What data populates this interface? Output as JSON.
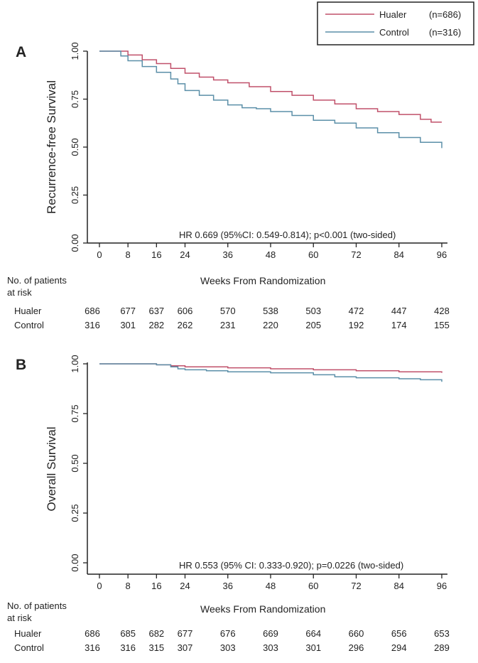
{
  "legend": {
    "entries": [
      {
        "label": "Hualer",
        "n": "(n=686)",
        "color": "#c0506a"
      },
      {
        "label": "Control",
        "n": "(n=316)",
        "color": "#5b8fa8"
      }
    ]
  },
  "chart_data": [
    {
      "type": "line",
      "panel_label": "A",
      "ylabel": "Recurrence-free Survival",
      "xlabel": "Weeks From Randomization",
      "xticks": [
        0,
        8,
        16,
        24,
        36,
        48,
        60,
        72,
        84,
        96
      ],
      "yticks": [
        "0.00",
        "0.25",
        "0.50",
        "0.75",
        "1.00"
      ],
      "xlim": [
        0,
        96
      ],
      "ylim": [
        0,
        1
      ],
      "annotation": "HR 0.669 (95%CI: 0.549-0.814); p<0.001 (two-sided)",
      "series": [
        {
          "name": "Hualer",
          "color": "#c0506a",
          "points": [
            [
              0,
              1.0
            ],
            [
              4,
              1.0
            ],
            [
              8,
              0.98
            ],
            [
              12,
              0.955
            ],
            [
              16,
              0.935
            ],
            [
              20,
              0.91
            ],
            [
              24,
              0.885
            ],
            [
              28,
              0.865
            ],
            [
              32,
              0.85
            ],
            [
              36,
              0.835
            ],
            [
              42,
              0.815
            ],
            [
              48,
              0.79
            ],
            [
              54,
              0.77
            ],
            [
              60,
              0.745
            ],
            [
              66,
              0.725
            ],
            [
              72,
              0.7
            ],
            [
              78,
              0.685
            ],
            [
              84,
              0.67
            ],
            [
              90,
              0.645
            ],
            [
              93,
              0.63
            ],
            [
              96,
              0.63
            ]
          ]
        },
        {
          "name": "Control",
          "color": "#5b8fa8",
          "points": [
            [
              0,
              1.0
            ],
            [
              4,
              1.0
            ],
            [
              6,
              0.975
            ],
            [
              8,
              0.95
            ],
            [
              12,
              0.92
            ],
            [
              16,
              0.89
            ],
            [
              20,
              0.855
            ],
            [
              22,
              0.83
            ],
            [
              24,
              0.795
            ],
            [
              28,
              0.77
            ],
            [
              32,
              0.745
            ],
            [
              36,
              0.72
            ],
            [
              40,
              0.705
            ],
            [
              44,
              0.7
            ],
            [
              48,
              0.685
            ],
            [
              54,
              0.665
            ],
            [
              60,
              0.64
            ],
            [
              66,
              0.625
            ],
            [
              72,
              0.6
            ],
            [
              78,
              0.575
            ],
            [
              84,
              0.55
            ],
            [
              90,
              0.525
            ],
            [
              96,
              0.495
            ]
          ]
        }
      ],
      "at_risk": {
        "title_line1": "No. of patients",
        "title_line2": "at risk",
        "rows": [
          {
            "label": "Hualer",
            "values": [
              "686",
              "677",
              "637",
              "606",
              "570",
              "538",
              "503",
              "472",
              "447",
              "428"
            ]
          },
          {
            "label": "Control",
            "values": [
              "316",
              "301",
              "282",
              "262",
              "231",
              "220",
              "205",
              "192",
              "174",
              "155"
            ]
          }
        ]
      }
    },
    {
      "type": "line",
      "panel_label": "B",
      "ylabel": "Overall Survival",
      "xlabel": "Weeks From Randomization",
      "xticks": [
        0,
        8,
        16,
        24,
        36,
        48,
        60,
        72,
        84,
        96
      ],
      "yticks": [
        "0.00",
        "0.25",
        "0.50",
        "0.75",
        "1.00"
      ],
      "xlim": [
        0,
        96
      ],
      "ylim": [
        0,
        1
      ],
      "annotation": "HR 0.553 (95% CI: 0.333-0.920); p=0.0226 (two-sided)",
      "series": [
        {
          "name": "Hualer",
          "color": "#c0506a",
          "points": [
            [
              0,
              1.0
            ],
            [
              12,
              1.0
            ],
            [
              16,
              0.995
            ],
            [
              20,
              0.99
            ],
            [
              24,
              0.985
            ],
            [
              36,
              0.98
            ],
            [
              48,
              0.975
            ],
            [
              60,
              0.97
            ],
            [
              72,
              0.965
            ],
            [
              84,
              0.96
            ],
            [
              96,
              0.955
            ]
          ]
        },
        {
          "name": "Control",
          "color": "#5b8fa8",
          "points": [
            [
              0,
              1.0
            ],
            [
              12,
              1.0
            ],
            [
              16,
              0.995
            ],
            [
              20,
              0.985
            ],
            [
              22,
              0.975
            ],
            [
              24,
              0.97
            ],
            [
              30,
              0.965
            ],
            [
              36,
              0.96
            ],
            [
              48,
              0.955
            ],
            [
              60,
              0.945
            ],
            [
              66,
              0.935
            ],
            [
              72,
              0.93
            ],
            [
              84,
              0.925
            ],
            [
              90,
              0.92
            ],
            [
              96,
              0.91
            ]
          ]
        }
      ],
      "at_risk": {
        "title_line1": "No. of patients",
        "title_line2": "at risk",
        "rows": [
          {
            "label": "Hualer",
            "values": [
              "686",
              "685",
              "682",
              "677",
              "676",
              "669",
              "664",
              "660",
              "656",
              "653"
            ]
          },
          {
            "label": "Control",
            "values": [
              "316",
              "316",
              "315",
              "307",
              "303",
              "303",
              "301",
              "296",
              "294",
              "289"
            ]
          }
        ]
      }
    }
  ]
}
